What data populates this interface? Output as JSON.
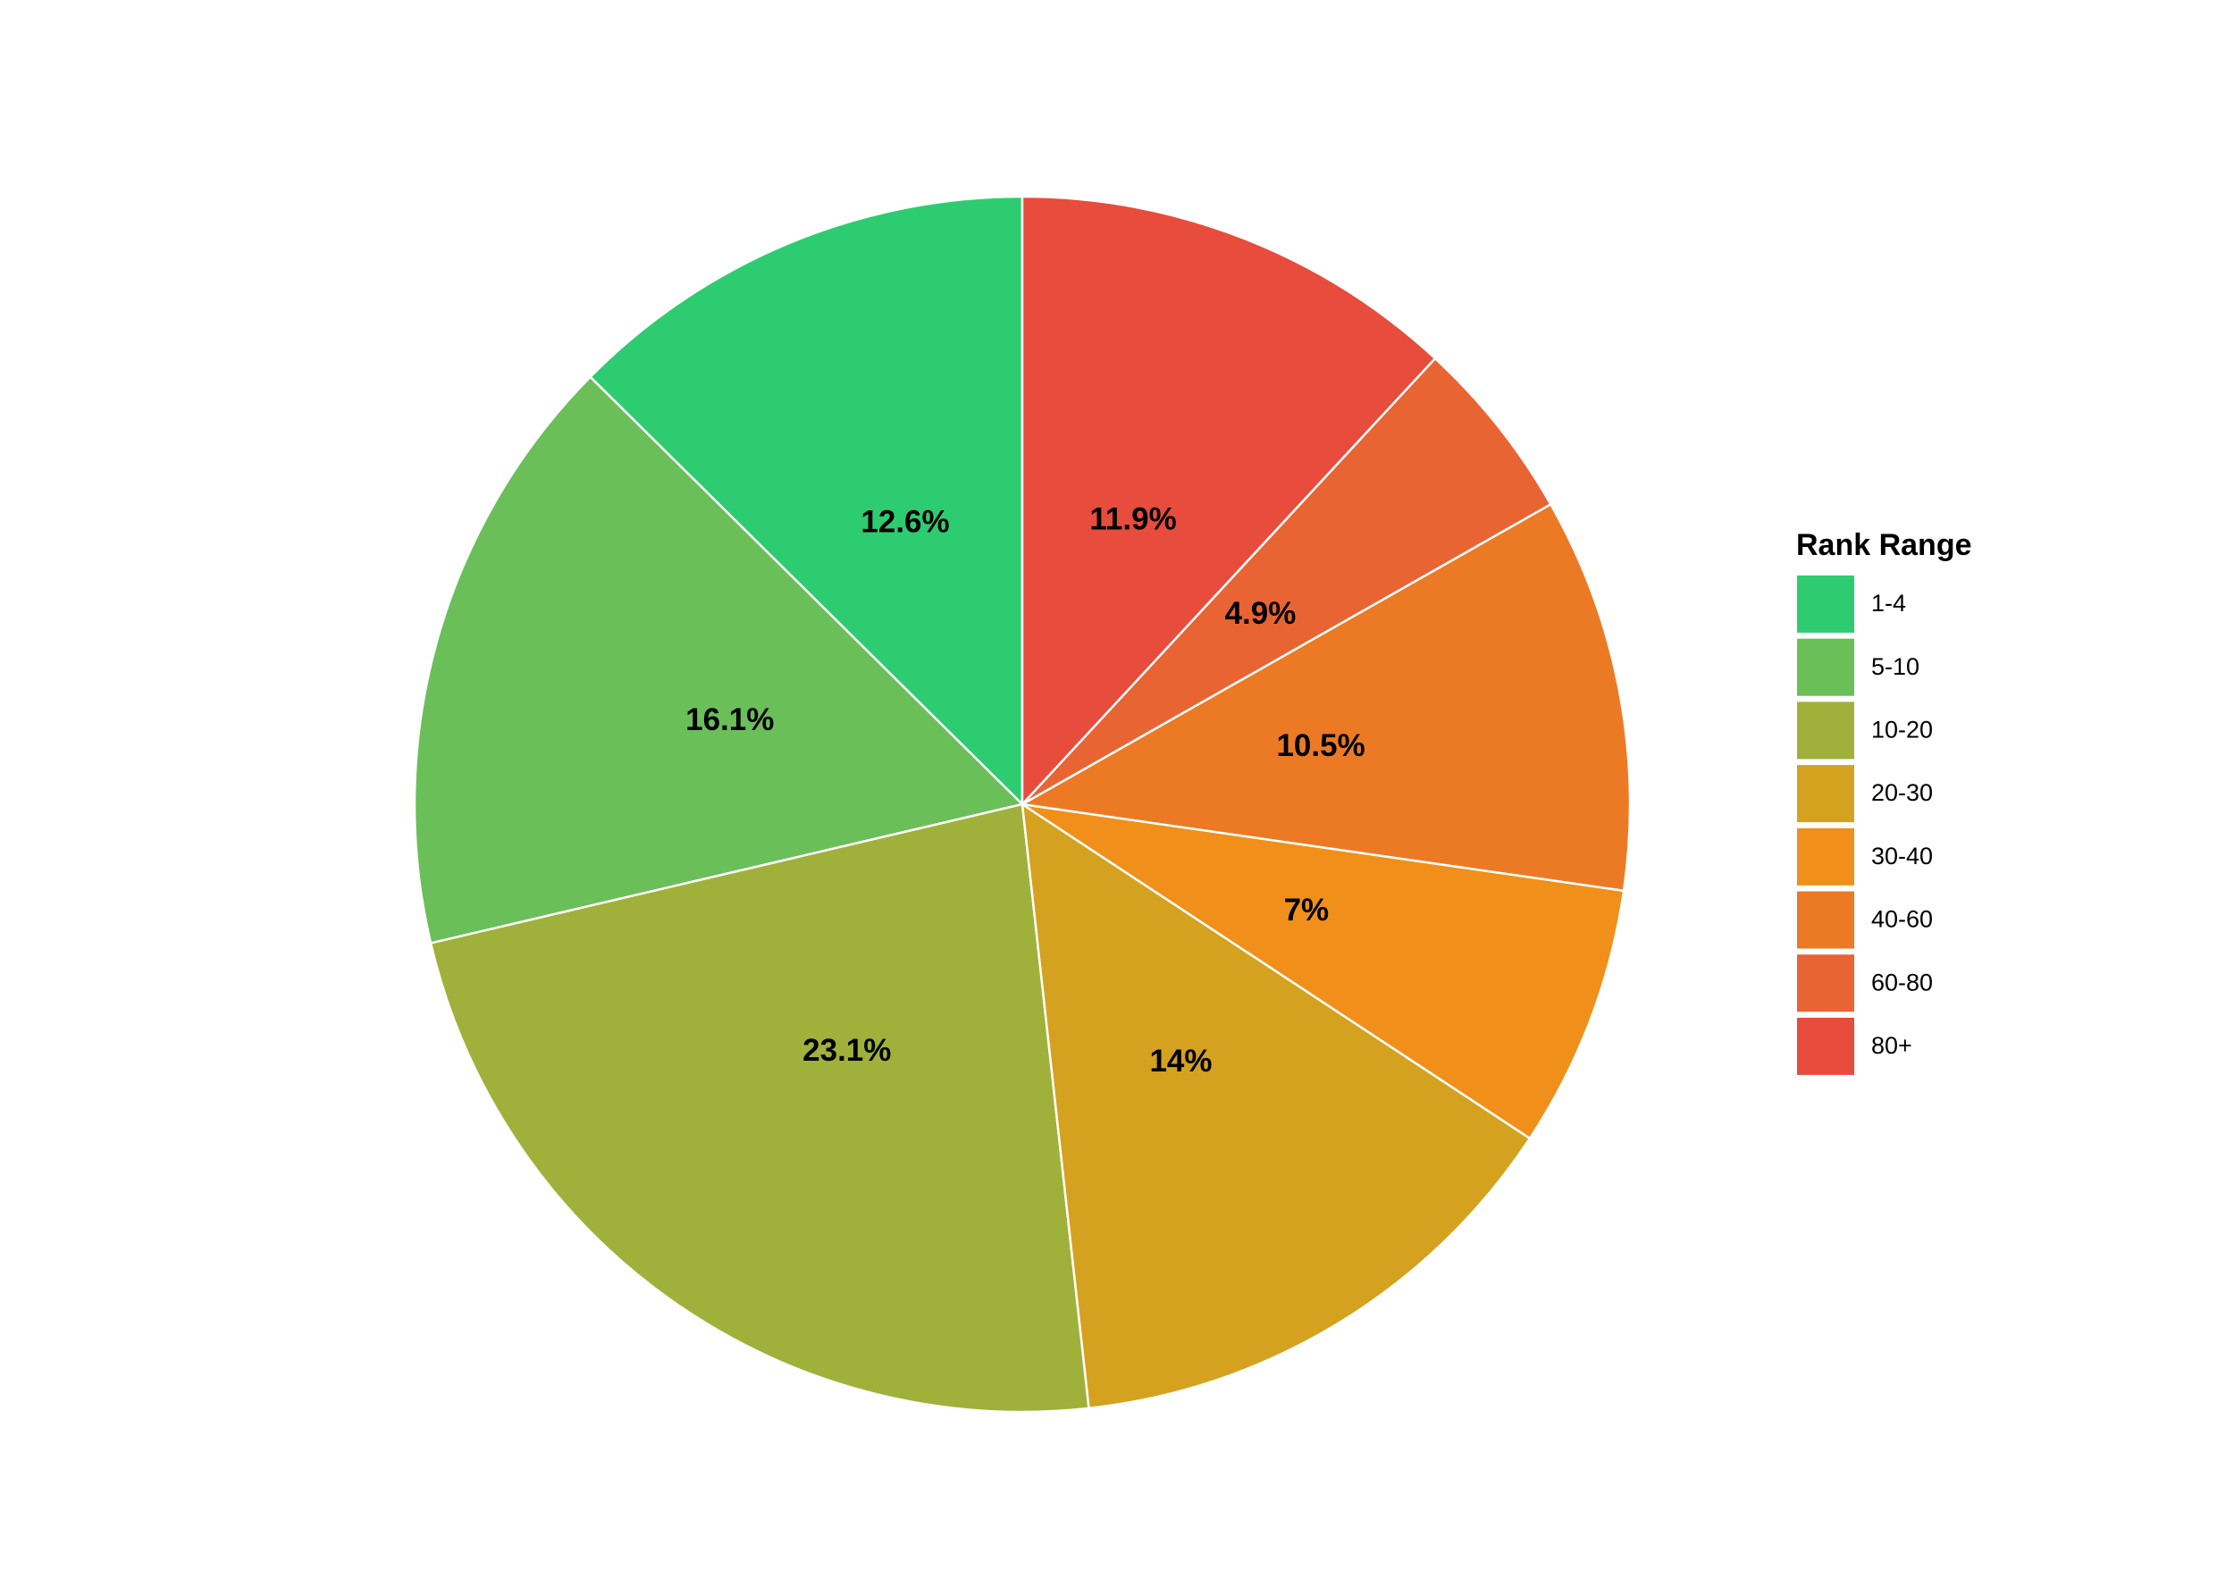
{
  "chart_data": {
    "type": "pie",
    "legend_title": "Rank Range",
    "categories": [
      "1-4",
      "5-10",
      "10-20",
      "20-30",
      "30-40",
      "40-60",
      "60-80",
      "80+"
    ],
    "values": [
      12.6,
      16.1,
      23.1,
      14,
      7,
      10.5,
      4.9,
      11.9
    ],
    "value_labels": [
      "12.6%",
      "16.1%",
      "23.1%",
      "14%",
      "7%",
      "10.5%",
      "4.9%",
      "11.9%"
    ],
    "colors": [
      "#2ecc71",
      "#6abf59",
      "#a0b13b",
      "#d5a21f",
      "#f0901a",
      "#ec7a25",
      "#e96433",
      "#e74c3c"
    ],
    "direction": "counterclockwise",
    "legend": "right"
  }
}
